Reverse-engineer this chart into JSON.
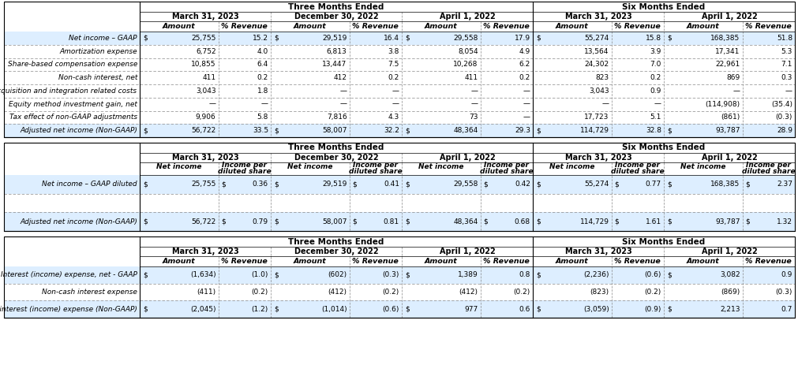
{
  "background_color": "#ffffff",
  "table1": {
    "rows": [
      [
        "Net income – GAAP",
        "$",
        "25,755",
        "15.2",
        "$",
        "29,519",
        "16.4",
        "$",
        "29,558",
        "17.9",
        "$",
        "55,274",
        "15.8",
        "$",
        "168,385",
        "51.8"
      ],
      [
        "Amortization expense",
        "",
        "6,752",
        "4.0",
        "",
        "6,813",
        "3.8",
        "",
        "8,054",
        "4.9",
        "",
        "13,564",
        "3.9",
        "",
        "17,341",
        "5.3"
      ],
      [
        "Share-based compensation expense",
        "",
        "10,855",
        "6.4",
        "",
        "13,447",
        "7.5",
        "",
        "10,268",
        "6.2",
        "",
        "24,302",
        "7.0",
        "",
        "22,961",
        "7.1"
      ],
      [
        "Non-cash interest, net",
        "",
        "411",
        "0.2",
        "",
        "412",
        "0.2",
        "",
        "411",
        "0.2",
        "",
        "823",
        "0.2",
        "",
        "869",
        "0.3"
      ],
      [
        "Acquisition and integration related costs",
        "",
        "3,043",
        "1.8",
        "",
        "—",
        "—",
        "",
        "—",
        "—",
        "",
        "3,043",
        "0.9",
        "",
        "—",
        "—"
      ],
      [
        "Equity method investment gain, net",
        "",
        "—",
        "—",
        "",
        "—",
        "—",
        "",
        "—",
        "—",
        "",
        "—",
        "—",
        "",
        "(114,908)",
        "(35.4)"
      ],
      [
        "Tax effect of non-GAAP adjustments",
        "",
        "9,906",
        "5.8",
        "",
        "7,816",
        "4.3",
        "",
        "73",
        "—",
        "",
        "17,723",
        "5.1",
        "",
        "(861)",
        "(0.3)"
      ],
      [
        "Adjusted net income (Non-GAAP)",
        "$",
        "56,722",
        "33.5",
        "$",
        "58,007",
        "32.2",
        "$",
        "48,364",
        "29.3",
        "$",
        "114,729",
        "32.8",
        "$",
        "93,787",
        "28.9"
      ]
    ],
    "bold_rows": [
      0,
      7
    ],
    "bottom_border_rows": [
      7
    ]
  },
  "table2": {
    "rows": [
      [
        "Net income – GAAP diluted",
        "$",
        "25,755",
        "$",
        "0.36",
        "$",
        "29,519",
        "$",
        "0.41",
        "$",
        "29,558",
        "$",
        "0.42",
        "$",
        "55,274",
        "$",
        "0.77",
        "$",
        "168,385",
        "$",
        "2.37"
      ],
      [
        "",
        "",
        "",
        "",
        "",
        "",
        "",
        "",
        "",
        "",
        "",
        "",
        "",
        "",
        "",
        "",
        "",
        "",
        "",
        "",
        "",
        ""
      ],
      [
        "Adjusted net income (Non-GAAP)",
        "$",
        "56,722",
        "$",
        "0.79",
        "$",
        "58,007",
        "$",
        "0.81",
        "$",
        "48,364",
        "$",
        "0.68",
        "$",
        "114,729",
        "$",
        "1.61",
        "$",
        "93,787",
        "$",
        "1.32"
      ]
    ],
    "bold_rows": [
      0,
      2
    ],
    "bottom_border_rows": [
      2
    ]
  },
  "table3": {
    "rows": [
      [
        "Interest (income) expense, net - GAAP",
        "$",
        "(1,634)",
        "(1.0)",
        "$",
        "(602)",
        "(0.3)",
        "$",
        "1,389",
        "0.8",
        "$",
        "(2,236)",
        "(0.6)",
        "$",
        "3,082",
        "0.9"
      ],
      [
        "Non-cash interest expense",
        "",
        "(411)",
        "(0.2)",
        "",
        "(412)",
        "(0.2)",
        "",
        "(412)",
        "(0.2)",
        "",
        "(823)",
        "(0.2)",
        "",
        "(869)",
        "(0.3)"
      ],
      [
        "Adjusted interest (income) expense (Non-GAAP)",
        "$",
        "(2,045)",
        "(1.2)",
        "$",
        "(1,014)",
        "(0.6)",
        "$",
        "977",
        "0.6",
        "$",
        "(3,059)",
        "(0.9)",
        "$",
        "2,213",
        "0.7"
      ]
    ],
    "bold_rows": [
      0,
      2
    ],
    "bottom_border_rows": [
      2
    ]
  }
}
